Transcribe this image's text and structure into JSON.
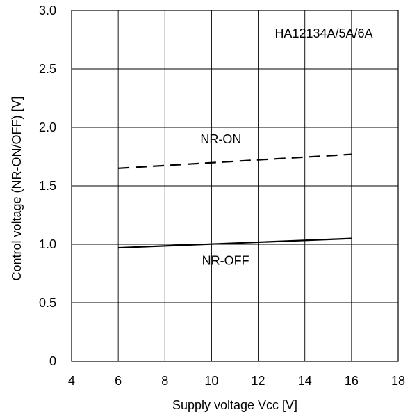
{
  "chart_data": {
    "type": "line",
    "annotation_title": "HA12134A/5A/6A",
    "xlabel": "Supply voltage Vcc [V]",
    "ylabel": "Control voltage (NR-ON/OFF) [V]",
    "xlim": [
      4,
      18
    ],
    "ylim": [
      0,
      3.0
    ],
    "xticks": [
      4,
      6,
      8,
      10,
      12,
      14,
      16,
      18
    ],
    "xtick_labels": [
      "4",
      "6",
      "8",
      "10",
      "12",
      "14",
      "16",
      "18"
    ],
    "yticks": [
      0,
      0.5,
      1.0,
      1.5,
      2.0,
      2.5,
      3.0
    ],
    "ytick_labels": [
      "0",
      "0.5",
      "1.0",
      "1.5",
      "2.0",
      "2.5",
      "3.0"
    ],
    "grid": true,
    "series": [
      {
        "name": "NR-ON",
        "style": "dashed",
        "color": "#000000",
        "x": [
          6,
          16
        ],
        "y": [
          1.65,
          1.77
        ],
        "label_at": [
          10.4,
          1.9
        ]
      },
      {
        "name": "NR-OFF",
        "style": "solid",
        "color": "#000000",
        "x": [
          6,
          16
        ],
        "y": [
          0.97,
          1.05
        ],
        "label_at": [
          10.6,
          0.86
        ]
      }
    ]
  }
}
